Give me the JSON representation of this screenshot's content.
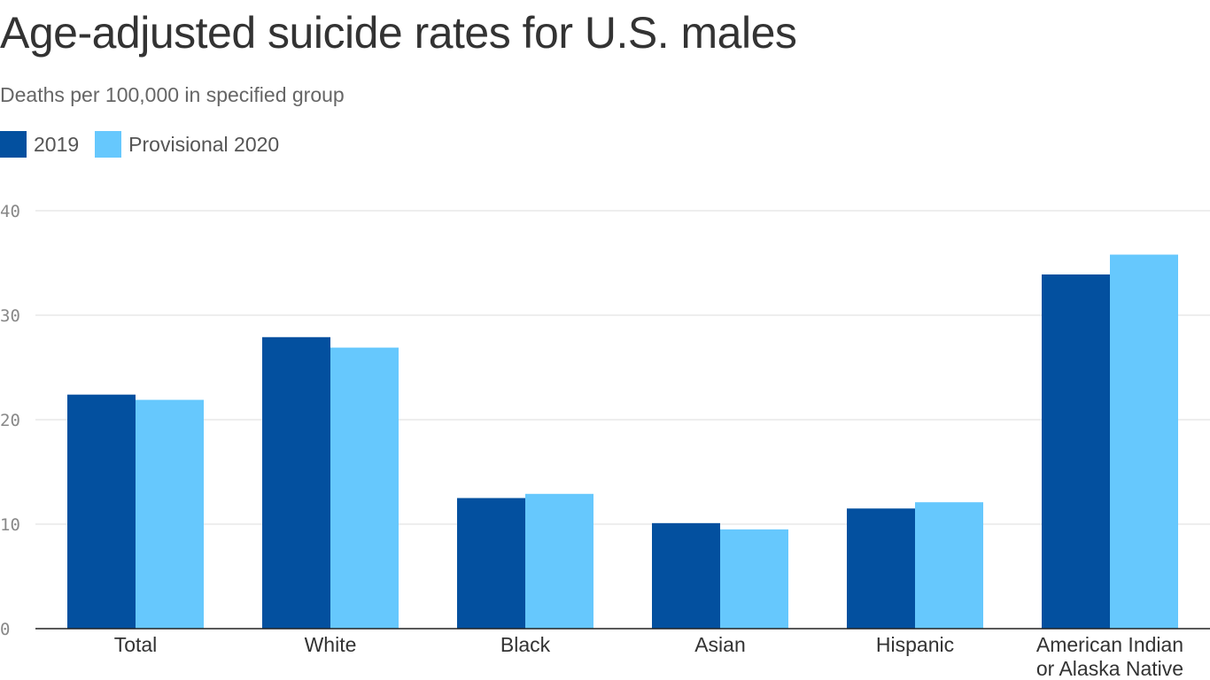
{
  "chart_data": {
    "type": "bar",
    "title": "Age-adjusted suicide rates for U.S. males",
    "subtitle": "Deaths per 100,000 in specified group",
    "categories": [
      "Total",
      "White",
      "Black",
      "Asian",
      "Hispanic",
      "American Indian or Alaska Native"
    ],
    "category_lines": [
      [
        "Total"
      ],
      [
        "White"
      ],
      [
        "Black"
      ],
      [
        "Asian"
      ],
      [
        "Hispanic"
      ],
      [
        "American Indian",
        "or Alaska Native"
      ]
    ],
    "series": [
      {
        "name": "2019",
        "color": "#03509f",
        "values": [
          22.4,
          27.9,
          12.5,
          10.1,
          11.5,
          33.9
        ]
      },
      {
        "name": "Provisional 2020",
        "color": "#66c8fd",
        "values": [
          21.9,
          26.9,
          12.9,
          9.5,
          12.1,
          35.8
        ]
      }
    ],
    "ylim": [
      0,
      40
    ],
    "yticks": [
      0,
      10,
      20,
      30,
      40
    ],
    "grid": true,
    "legend": "top-left"
  }
}
